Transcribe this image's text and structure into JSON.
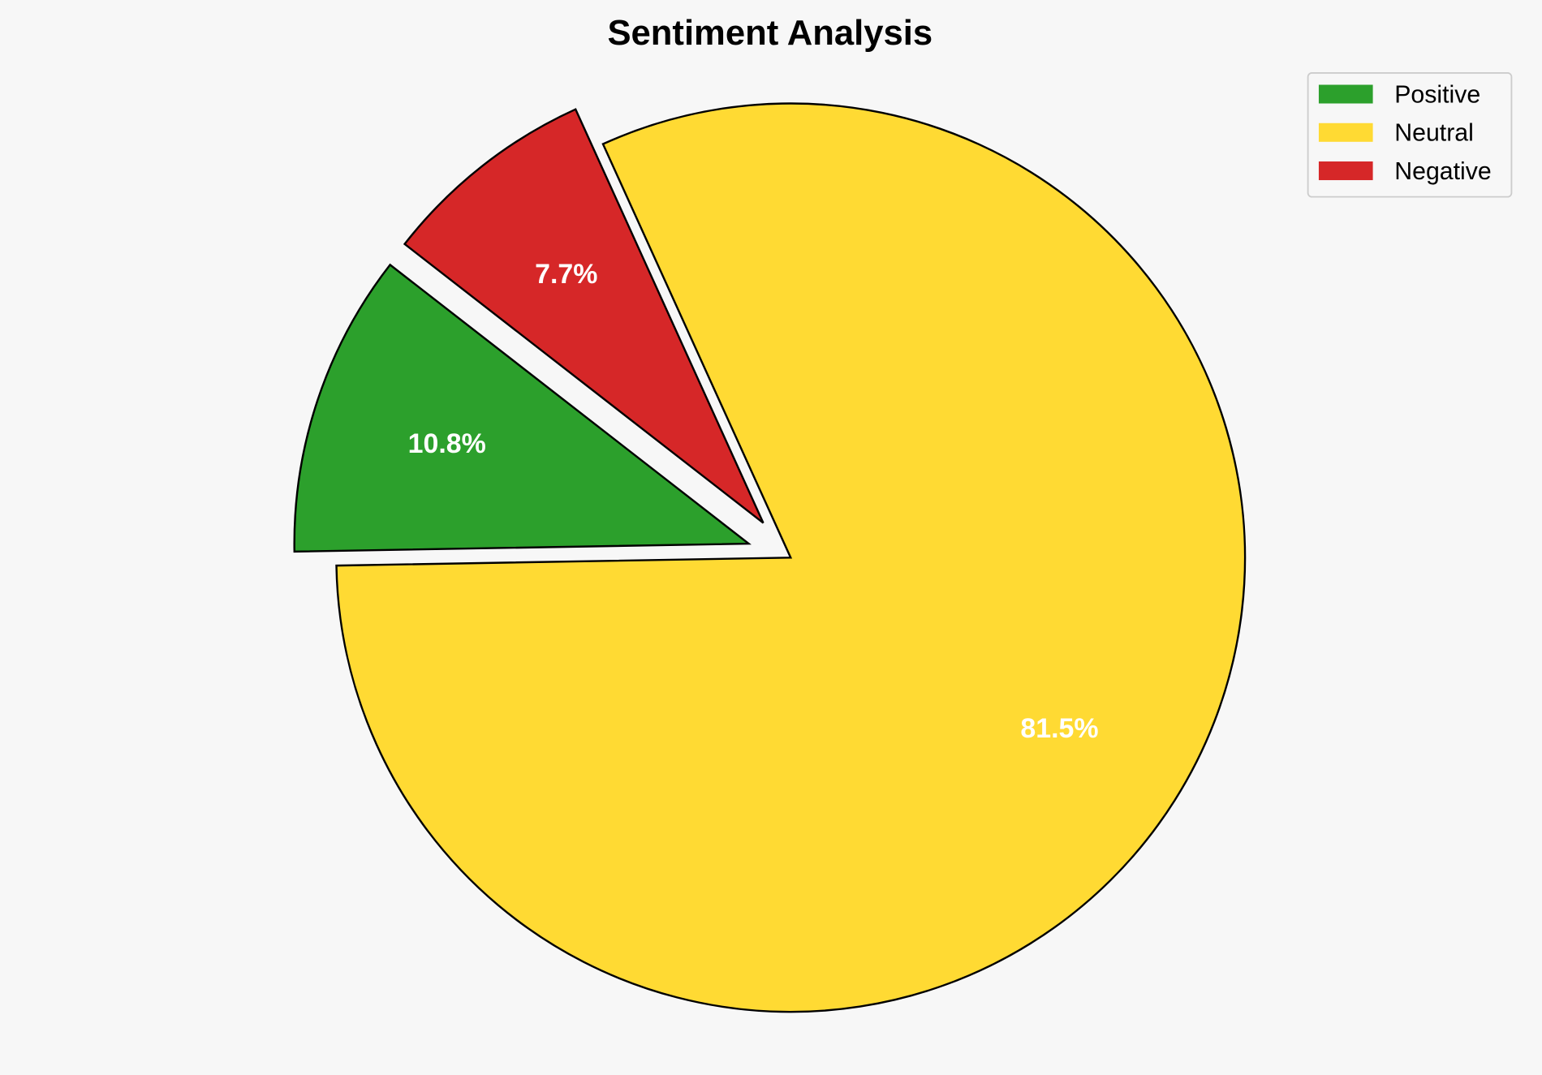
{
  "chart_data": {
    "type": "pie",
    "title": "Sentiment Analysis",
    "categories": [
      "Positive",
      "Neutral",
      "Negative"
    ],
    "values": [
      10.8,
      81.5,
      7.7
    ],
    "labels": [
      "10.8%",
      "81.5%",
      "7.7%"
    ],
    "colors": [
      "#2ca02c",
      "#ffda33",
      "#d62728"
    ],
    "exploded": [
      true,
      false,
      true
    ],
    "legend_position": "top-right",
    "background": "#f7f7f7"
  }
}
